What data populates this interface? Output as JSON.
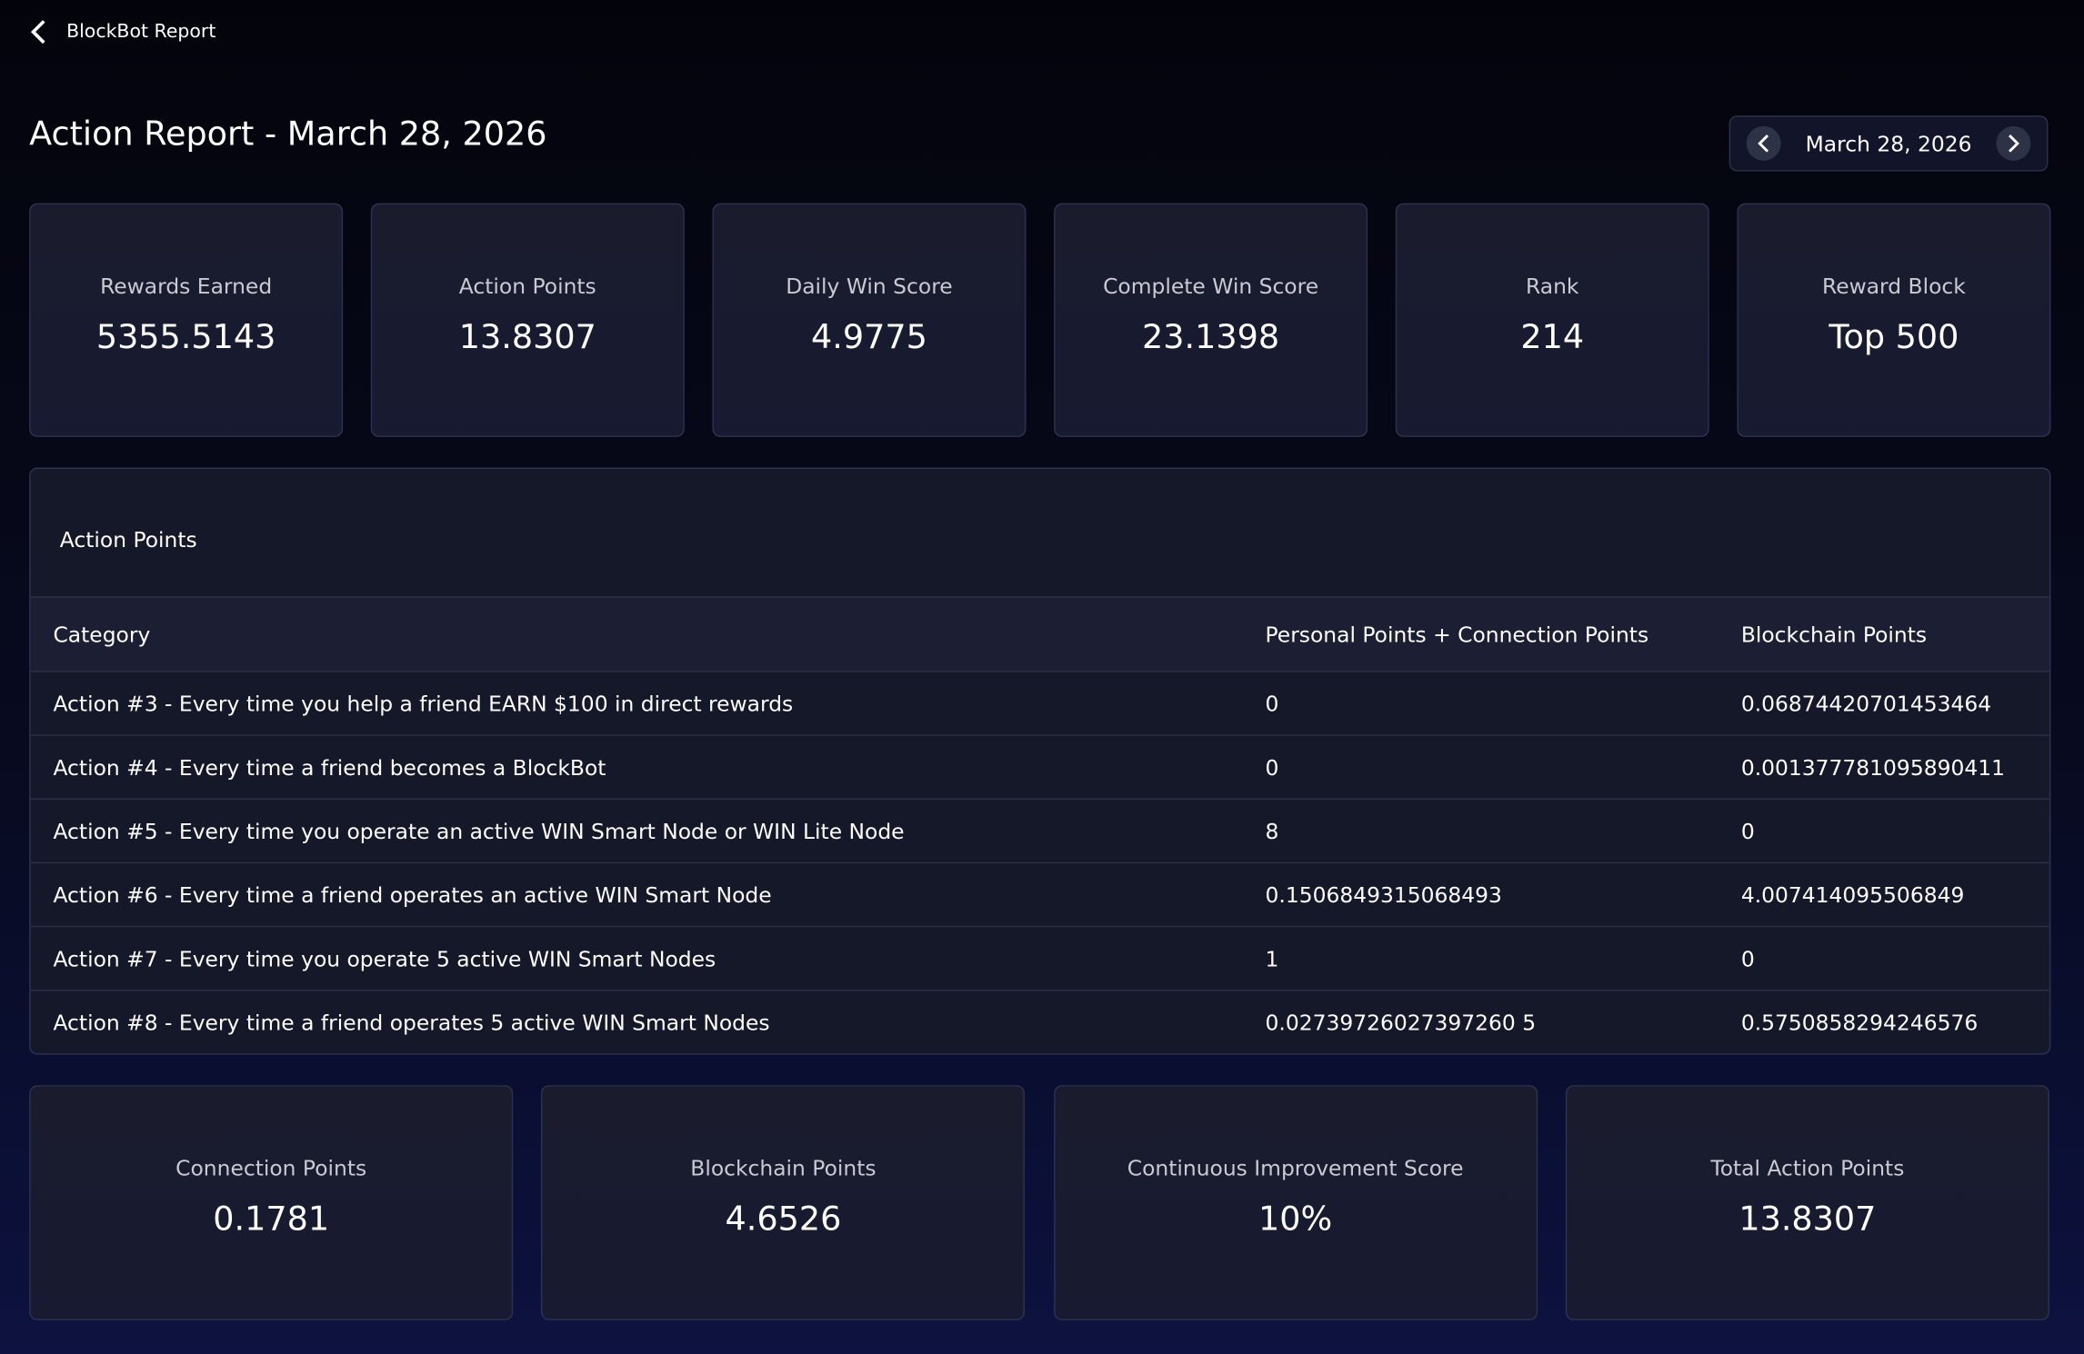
{
  "header": {
    "back_label": "BlockBot Report",
    "title": "Action Report - March 28, 2026",
    "date": "March 28, 2026"
  },
  "stats": [
    {
      "label": "Rewards Earned",
      "value": "5355.5143"
    },
    {
      "label": "Action Points",
      "value": "13.8307"
    },
    {
      "label": "Daily Win Score",
      "value": "4.9775"
    },
    {
      "label": "Complete Win Score",
      "value": "23.1398"
    },
    {
      "label": "Rank",
      "value": "214"
    },
    {
      "label": "Reward Block",
      "value": "Top 500"
    }
  ],
  "table": {
    "title": "Action Points",
    "columns": [
      "Category",
      "Personal Points + Connection Points",
      "Blockchain Points"
    ],
    "rows": [
      [
        "Action #3 - Every time you help a friend EARN $100 in direct rewards",
        "0",
        "0.06874420701453464"
      ],
      [
        "Action #4 - Every time a friend becomes a BlockBot",
        "0",
        "0.001377781095890411"
      ],
      [
        "Action #5 - Every time you operate an active WIN Smart Node or WIN Lite Node",
        "8",
        "0"
      ],
      [
        "Action #6 - Every time a friend operates an active WIN Smart Node",
        "0.1506849315068493",
        "4.007414095506849"
      ],
      [
        "Action #7 - Every time you operate 5 active WIN Smart Nodes",
        "1",
        "0"
      ],
      [
        "Action #8 - Every time a friend operates 5 active WIN Smart Nodes",
        "0.02739726027397260 5",
        "0.5750858294246576"
      ]
    ]
  },
  "summary": [
    {
      "label": "Connection Points",
      "value": "0.1781"
    },
    {
      "label": "Blockchain Points",
      "value": "4.6526"
    },
    {
      "label": "Continuous Improvement Score",
      "value": "10%"
    },
    {
      "label": "Total Action Points",
      "value": "13.8307"
    }
  ]
}
